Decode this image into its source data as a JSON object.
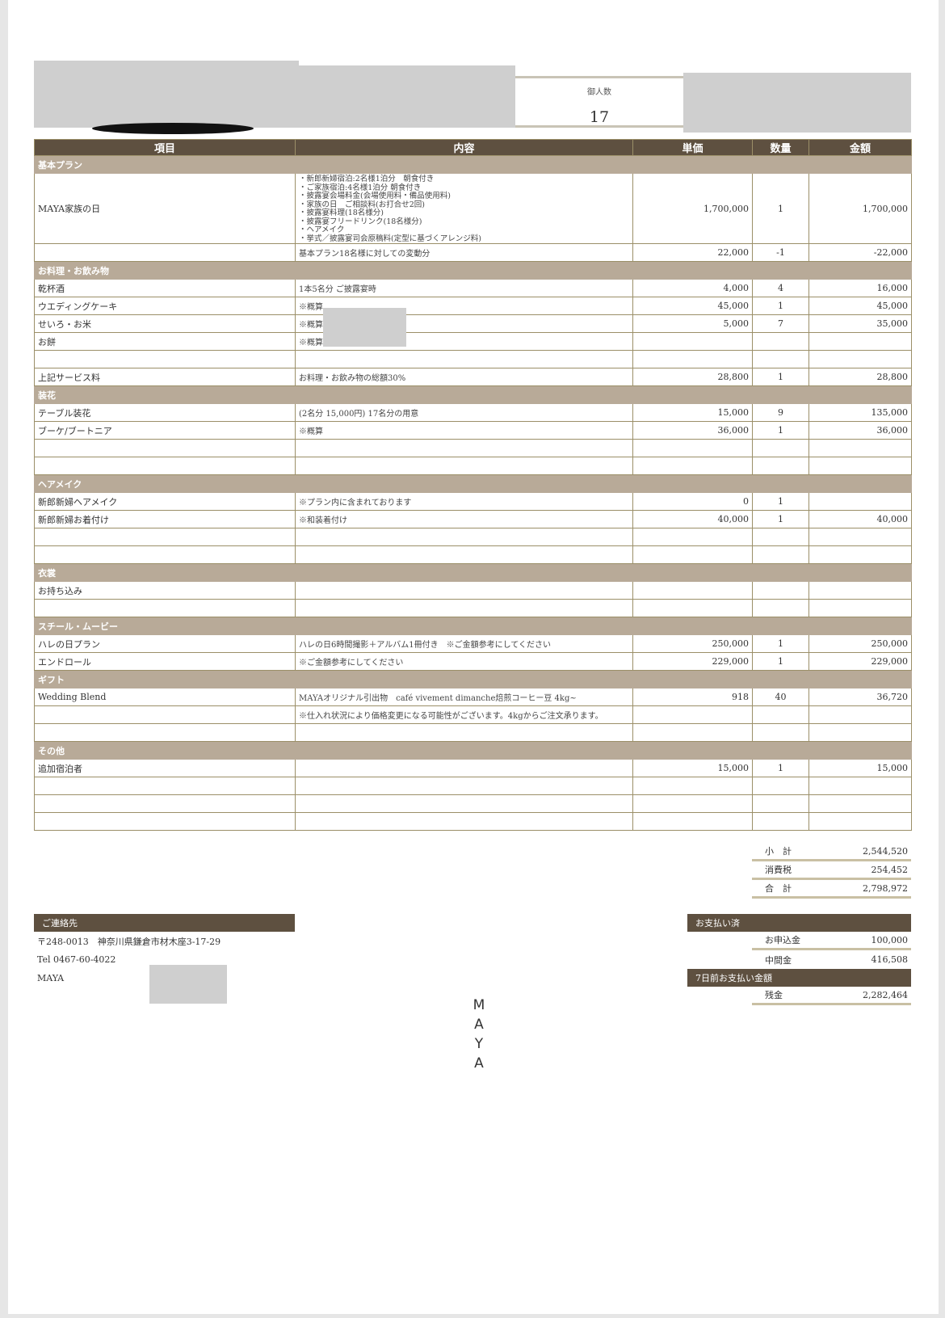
{
  "guest_count": {
    "label": "御人数",
    "value": "17"
  },
  "table": {
    "headers": [
      "項目",
      "内容",
      "単価",
      "数量",
      "金額"
    ],
    "sections": [
      {
        "title": "基本プラン",
        "rows": [
          {
            "item": "MAYA家族の日",
            "desc_lines": [
              "・新郎新婦宿泊:2名様1泊分　朝食付き",
              "・ご家族宿泊:4名様1泊分 朝食付き",
              "・披露宴会場料金(会場使用料・備品使用料)",
              "・家族の日　ご相談料(お打合せ2回)",
              "・披露宴料理(18名様分)",
              "・披露宴フリードリンク(18名様分)",
              "・ヘアメイク",
              "・挙式／披露宴司会原稿料(定型に基づくアレンジ料)"
            ],
            "price": "1,700,000",
            "qty": "1",
            "amount": "1,700,000"
          },
          {
            "item": "",
            "desc": "基本プラン18名様に対しての変動分",
            "price": "22,000",
            "qty": "-1",
            "amount": "-22,000"
          }
        ]
      },
      {
        "title": "お料理・お飲み物",
        "rows": [
          {
            "item": "乾杯酒",
            "desc": "1本5名分 ご披露宴時",
            "price": "4,000",
            "qty": "4",
            "amount": "16,000"
          },
          {
            "item": "ウエディングケーキ",
            "desc": "※概算",
            "price": "45,000",
            "qty": "1",
            "amount": "45,000"
          },
          {
            "item": "せいろ・お米",
            "desc": "※概算",
            "price": "5,000",
            "qty": "7",
            "amount": "35,000"
          },
          {
            "item": "お餅",
            "desc": "※概算",
            "price": "",
            "qty": "",
            "amount": ""
          },
          {
            "item": "",
            "desc": "",
            "price": "",
            "qty": "",
            "amount": ""
          },
          {
            "item": "上記サービス料",
            "desc": "お料理・お飲み物の総額30%",
            "price": "28,800",
            "qty": "1",
            "amount": "28,800"
          }
        ]
      },
      {
        "title": "装花",
        "rows": [
          {
            "item": "テーブル装花",
            "desc": "(2名分 15,000円) 17名分の用意",
            "price": "15,000",
            "qty": "9",
            "amount": "135,000"
          },
          {
            "item": "ブーケ/ブートニア",
            "desc": "※概算",
            "price": "36,000",
            "qty": "1",
            "amount": "36,000"
          },
          {
            "item": "",
            "desc": "",
            "price": "",
            "qty": "",
            "amount": ""
          },
          {
            "item": "",
            "desc": "",
            "price": "",
            "qty": "",
            "amount": ""
          }
        ]
      },
      {
        "title": "ヘアメイク",
        "rows": [
          {
            "item": "新郎新婦ヘアメイク",
            "desc": "※プラン内に含まれております",
            "price": "0",
            "qty": "1",
            "amount": ""
          },
          {
            "item": "新郎新婦お着付け",
            "desc": "※和装着付け",
            "price": "40,000",
            "qty": "1",
            "amount": "40,000"
          },
          {
            "item": "",
            "desc": "",
            "price": "",
            "qty": "",
            "amount": ""
          },
          {
            "item": "",
            "desc": "",
            "price": "",
            "qty": "",
            "amount": ""
          }
        ]
      },
      {
        "title": "衣裳",
        "rows": [
          {
            "item": "お持ち込み",
            "desc": "",
            "price": "",
            "qty": "",
            "amount": ""
          },
          {
            "item": "",
            "desc": "",
            "price": "",
            "qty": "",
            "amount": ""
          }
        ]
      },
      {
        "title": "スチール・ムービー",
        "rows": [
          {
            "item": "ハレの日プラン",
            "desc": "ハレの日6時間撮影＋アルバム1冊付き　※ご金額参考にしてください",
            "price": "250,000",
            "qty": "1",
            "amount": "250,000"
          },
          {
            "item": "エンドロール",
            "desc": "※ご金額参考にしてください",
            "price": "229,000",
            "qty": "1",
            "amount": "229,000"
          }
        ]
      },
      {
        "title": "ギフト",
        "rows": [
          {
            "item": "Wedding Blend",
            "desc": "MAYAオリジナル引出物　café vivement dimanche焙煎コーヒー豆 4kg~",
            "price": "918",
            "qty": "40",
            "amount": "36,720"
          },
          {
            "item": "",
            "desc": "※仕入れ状況により価格変更になる可能性がございます。4kgからご注文承ります。",
            "price": "",
            "qty": "",
            "amount": ""
          },
          {
            "item": "",
            "desc": "",
            "price": "",
            "qty": "",
            "amount": ""
          }
        ]
      },
      {
        "title": "その他",
        "rows": [
          {
            "item": "追加宿泊者",
            "desc": "",
            "price": "15,000",
            "qty": "1",
            "amount": "15,000"
          },
          {
            "item": "",
            "desc": "",
            "price": "",
            "qty": "",
            "amount": ""
          },
          {
            "item": "",
            "desc": "",
            "price": "",
            "qty": "",
            "amount": ""
          },
          {
            "item": "",
            "desc": "",
            "price": "",
            "qty": "",
            "amount": ""
          }
        ]
      }
    ]
  },
  "totals": {
    "subtotal_label": "小　計",
    "subtotal": "2,544,520",
    "tax_label": "消費税",
    "tax": "254,452",
    "total_label": "合　計",
    "total": "2,798,972"
  },
  "contact": {
    "title": "ご連絡先",
    "address": "〒248-0013　神奈川県鎌倉市材木座3-17-29",
    "tel": "Tel 0467-60-4022",
    "name": "MAYA"
  },
  "payment": {
    "paid_title": "お支払い済",
    "deposit_label": "お申込金",
    "deposit": "100,000",
    "interim_label": "中間金",
    "interim": "416,508",
    "due_title": "7日前お支払い金額",
    "balance_label": "残金",
    "balance": "2,282,464"
  },
  "logo": "MAYA",
  "colors": {
    "header": "#5e5040",
    "section": "#b8aa98",
    "border": "#9b8f68"
  }
}
